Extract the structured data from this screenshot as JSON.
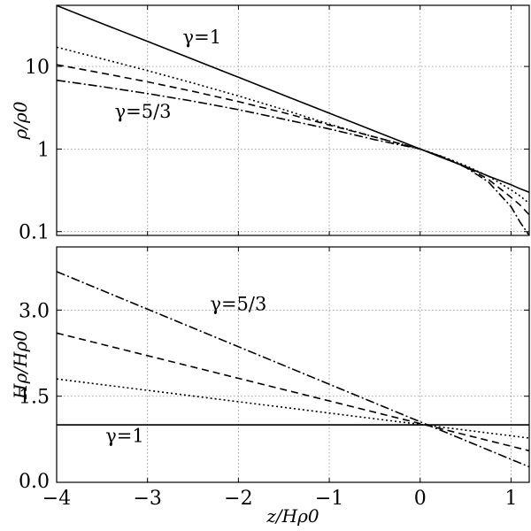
{
  "chart_data": [
    {
      "type": "line",
      "panel": "top",
      "ylabel": "ρ/ρ0",
      "yscale": "log",
      "xlim": [
        -4,
        1.2
      ],
      "ylim": [
        0.09,
        55
      ],
      "xticks": [
        -4,
        -3,
        -2,
        -1,
        0,
        1
      ],
      "yticks": [
        0.1,
        1,
        10
      ],
      "ytick_labels": [
        "0.1",
        "1",
        "10"
      ],
      "grid": true,
      "annotations": [
        {
          "text": "γ=1",
          "x": -2.4,
          "y": 19
        },
        {
          "text": "γ=5/3",
          "x": -3.05,
          "y": 2.4
        }
      ],
      "x": [
        -4,
        -3.5,
        -3,
        -2.5,
        -2,
        -1.5,
        -1,
        -0.5,
        0,
        0.25,
        0.5,
        0.75,
        1,
        1.1,
        1.2
      ],
      "series": [
        {
          "style": "solid",
          "values": [
            54.6,
            33.1,
            20.1,
            12.2,
            7.39,
            4.48,
            2.72,
            1.65,
            1.0,
            0.78,
            0.61,
            0.47,
            0.37,
            0.33,
            0.3
          ]
        },
        {
          "style": "dotted",
          "values": [
            17.1,
            12.4,
            8.9,
            6.3,
            4.4,
            3.0,
            2.0,
            1.4,
            1.0,
            0.81,
            0.63,
            0.47,
            0.32,
            0.27,
            0.22
          ]
        },
        {
          "style": "dashed",
          "values": [
            10.5,
            8.3,
            6.5,
            5.0,
            3.75,
            2.75,
            1.95,
            1.4,
            1.0,
            0.8,
            0.61,
            0.43,
            0.26,
            0.21,
            0.16
          ]
        },
        {
          "style": "dashdot",
          "values": [
            6.8,
            5.7,
            4.7,
            3.8,
            3.0,
            2.3,
            1.75,
            1.3,
            1.0,
            0.8,
            0.6,
            0.4,
            0.2,
            0.13,
            0.09
          ]
        }
      ]
    },
    {
      "type": "line",
      "panel": "bottom",
      "xlabel": "z/Hρ0",
      "ylabel": "Hρ/Hρ0",
      "xlim": [
        -4,
        1.2
      ],
      "ylim": [
        0,
        4.1
      ],
      "xticks": [
        -4,
        -3,
        -2,
        -1,
        0,
        1
      ],
      "xtick_labels": [
        "−4",
        "−3",
        "−2",
        "−1",
        "0",
        "1"
      ],
      "yticks": [
        0,
        1.5,
        3
      ],
      "ytick_labels": [
        "0.0",
        "1.5",
        "3.0"
      ],
      "grid": true,
      "annotations": [
        {
          "text": "γ=5/3",
          "x": -2.0,
          "y": 3.0
        },
        {
          "text": "γ=1",
          "x": -3.25,
          "y": 0.7
        }
      ],
      "x": [
        -4,
        1.2
      ],
      "series": [
        {
          "style": "solid",
          "values": [
            1.0,
            1.0
          ]
        },
        {
          "style": "dotted",
          "values": [
            1.8,
            0.77
          ]
        },
        {
          "style": "dashed",
          "values": [
            2.6,
            0.55
          ]
        },
        {
          "style": "dashdot",
          "values": [
            3.67,
            0.27
          ]
        }
      ]
    }
  ]
}
